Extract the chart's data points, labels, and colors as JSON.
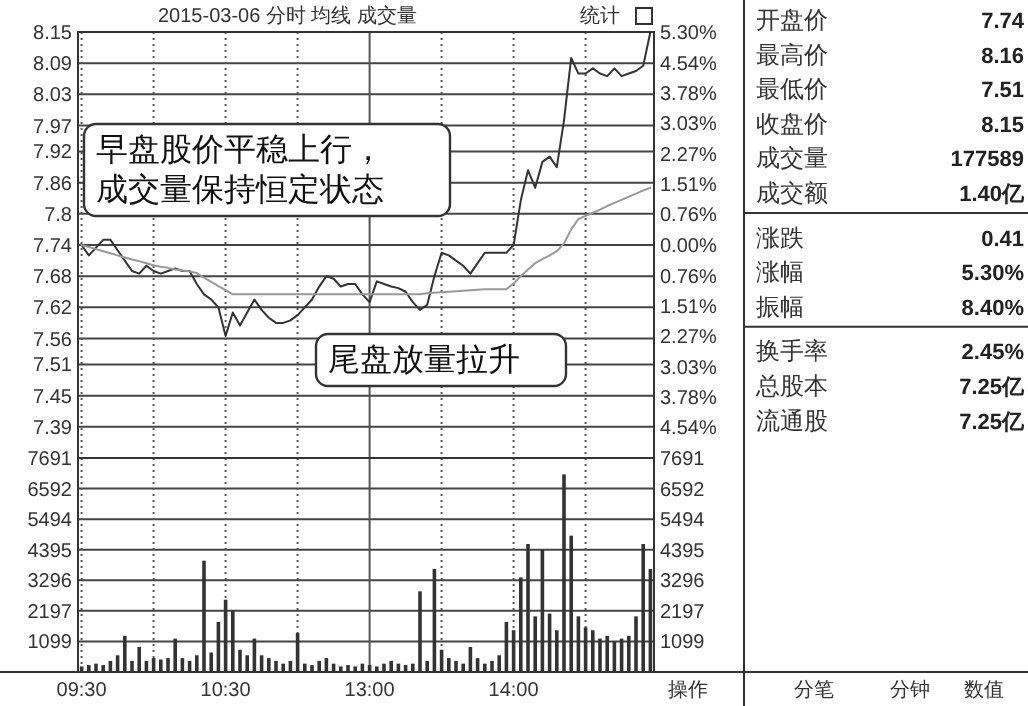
{
  "chart_data": [
    {
      "type": "line",
      "title": "2015-03-06 分时 均线 成交量",
      "annotations": [
        "统计",
        "早盘股价平稳上行，成交量保持恒定状态",
        "尾盘放量拉升"
      ],
      "categories": [
        "09:30",
        null,
        null,
        null,
        null,
        null,
        null,
        null,
        null,
        null,
        null,
        null,
        null,
        null,
        null,
        null,
        null,
        null,
        null,
        null,
        "10:30",
        null,
        null,
        null,
        null,
        null,
        null,
        null,
        null,
        null,
        null,
        null,
        null,
        null,
        null,
        null,
        null,
        null,
        null,
        null,
        "13:00",
        null,
        null,
        null,
        null,
        null,
        null,
        null,
        null,
        null,
        null,
        null,
        null,
        null,
        null,
        null,
        null,
        null,
        null,
        null,
        "14:00",
        null,
        null,
        null,
        null,
        null,
        null,
        null,
        null,
        null,
        null,
        null,
        null,
        null,
        null,
        null,
        null,
        null,
        null,
        null
      ],
      "ylim": [
        7.33,
        8.15
      ],
      "yticks": [
        7.39,
        7.45,
        7.51,
        7.56,
        7.62,
        7.68,
        7.74,
        7.8,
        7.86,
        7.92,
        7.97,
        8.03,
        8.09,
        8.15
      ],
      "y2lim": [
        -5.3,
        5.3
      ],
      "y2ticks": [
        {
          "value": -4.54,
          "label": "4.54%"
        },
        {
          "value": -3.78,
          "label": "3.78%"
        },
        {
          "value": -3.03,
          "label": "3.03%"
        },
        {
          "value": -2.27,
          "label": "2.27%"
        },
        {
          "value": -1.51,
          "label": "1.51%"
        },
        {
          "value": -0.76,
          "label": "0.76%"
        },
        {
          "value": 0,
          "label": "0.00%"
        },
        {
          "value": 0.76,
          "label": "0.76%"
        },
        {
          "value": 1.51,
          "label": "1.51%"
        },
        {
          "value": 2.27,
          "label": "2.27%"
        },
        {
          "value": 3.03,
          "label": "3.03%"
        },
        {
          "value": 3.78,
          "label": "3.78%"
        },
        {
          "value": 4.54,
          "label": "4.54%"
        },
        {
          "value": 5.3,
          "label": "5.30%"
        }
      ],
      "grid": true,
      "tick_labels": "y",
      "line_style": "solid",
      "marker": "none",
      "series": [
        {
          "color": "#333333",
          "values": [
            7.74,
            7.72,
            7.735,
            7.75,
            7.75,
            7.73,
            7.71,
            7.69,
            7.685,
            7.7,
            7.69,
            7.685,
            7.69,
            7.695,
            7.69,
            7.69,
            7.665,
            7.645,
            7.635,
            7.62,
            7.565,
            7.61,
            7.585,
            7.61,
            7.635,
            7.615,
            7.6,
            7.59,
            7.59,
            7.595,
            7.605,
            7.62,
            7.635,
            7.66,
            7.68,
            7.675,
            7.66,
            7.665,
            7.665,
            7.645,
            7.63,
            7.67,
            7.665,
            7.66,
            7.657,
            7.65,
            7.63,
            7.615,
            7.625,
            7.68,
            7.725,
            7.72,
            7.71,
            7.7,
            7.685,
            7.705,
            7.725,
            7.725,
            7.725,
            7.725,
            7.74,
            7.826,
            7.884,
            7.85,
            7.9,
            7.91,
            7.89,
            7.98,
            8.1,
            8.07,
            8.07,
            8.08,
            8.07,
            8.065,
            8.08,
            8.065,
            8.07,
            8.075,
            8.085,
            8.15
          ]
        },
        {
          "color": "#999999",
          "values": [
            7.74,
            7.736,
            7.732,
            7.728,
            7.724,
            7.72,
            7.716,
            7.712,
            7.709,
            7.705,
            7.701,
            7.698,
            7.696,
            7.693,
            7.691,
            7.689,
            7.686,
            7.677,
            7.669,
            7.661,
            7.653,
            7.645,
            7.645,
            7.645,
            7.645,
            7.645,
            7.645,
            7.645,
            7.645,
            7.645,
            7.645,
            7.645,
            7.645,
            7.645,
            7.645,
            7.645,
            7.645,
            7.645,
            7.645,
            7.645,
            7.645,
            7.645,
            7.645,
            7.645,
            7.645,
            7.645,
            7.645,
            7.645,
            7.647,
            7.648,
            7.649,
            7.65,
            7.651,
            7.652,
            7.653,
            7.654,
            7.655,
            7.655,
            7.655,
            7.655,
            7.666,
            7.68,
            7.693,
            7.705,
            7.713,
            7.72,
            7.728,
            7.743,
            7.77,
            7.79,
            7.796,
            7.802,
            7.808,
            7.815,
            7.821,
            7.827,
            7.833,
            7.839,
            7.845,
            7.85
          ]
        }
      ]
    },
    {
      "type": "bar",
      "categories": [
        "09:30",
        null,
        null,
        null,
        null,
        null,
        null,
        null,
        null,
        null,
        null,
        null,
        null,
        null,
        null,
        null,
        null,
        null,
        null,
        null,
        "10:30",
        null,
        null,
        null,
        null,
        null,
        null,
        null,
        null,
        null,
        null,
        null,
        null,
        null,
        null,
        null,
        null,
        null,
        null,
        null,
        "13:00",
        null,
        null,
        null,
        null,
        null,
        null,
        null,
        null,
        null,
        null,
        null,
        null,
        null,
        null,
        null,
        null,
        null,
        null,
        null,
        "14:00",
        null,
        null,
        null,
        null,
        null,
        null,
        null,
        null,
        null,
        null,
        null,
        null,
        null,
        null,
        null,
        null,
        null,
        null,
        null
      ],
      "ylim": [
        0,
        7691
      ],
      "yticks": [
        1099,
        2197,
        3296,
        4395,
        5494,
        6592,
        7691
      ],
      "y2lim": [
        0,
        7691
      ],
      "y2ticks": [
        1099,
        2197,
        3296,
        4395,
        5494,
        6592,
        7691
      ],
      "grid": true,
      "color": "#333333",
      "values": [
        200,
        250,
        300,
        250,
        400,
        600,
        1300,
        400,
        900,
        400,
        500,
        450,
        500,
        1200,
        500,
        400,
        600,
        4000,
        700,
        1800,
        2600,
        2200,
        800,
        600,
        1200,
        600,
        500,
        400,
        300,
        400,
        1400,
        300,
        250,
        400,
        500,
        300,
        200,
        250,
        200,
        300,
        250,
        200,
        300,
        400,
        300,
        250,
        300,
        2900,
        400,
        3700,
        800,
        500,
        400,
        300,
        900,
        500,
        300,
        400,
        600,
        1800,
        1500,
        3400,
        4600,
        2000,
        4400,
        2100,
        1500,
        7100,
        4900,
        2000,
        1600,
        1500,
        1200,
        1300,
        1100,
        1200,
        1300,
        2000,
        4600,
        3700
      ]
    },
    {
      "type": "other",
      "categories": [
        "开盘价",
        "最高价",
        "最低价",
        "收盘价",
        "成交量",
        "成交额",
        "涨跌",
        "涨幅",
        "振幅",
        "换手率",
        "总股本",
        "流通股"
      ],
      "value_labels": [
        "7.74",
        "8.16",
        "7.51",
        "8.15",
        "177589",
        "1.40亿",
        "0.41",
        "5.30%",
        "8.40%",
        "2.45%",
        "7.25亿",
        "7.25亿"
      ],
      "annotations": [
        "操作",
        "分笔",
        "分钟",
        "数值"
      ]
    }
  ]
}
